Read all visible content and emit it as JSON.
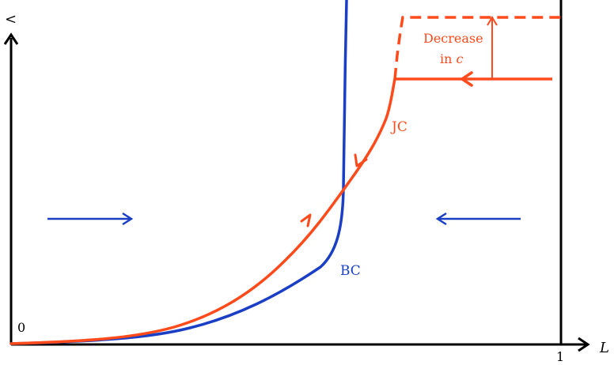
{
  "axes": {
    "y_label": "<",
    "x_label": "L",
    "origin_label": "0",
    "x_end_tick": "1"
  },
  "curves": {
    "bc_label": "BC",
    "jc_label": "JC"
  },
  "annotation": {
    "line1": "Decrease",
    "line2_prefix": "in ",
    "line2_symbol": "c"
  },
  "colors": {
    "axis": "#000000",
    "bc": "#1a3fc4",
    "jc": "#ff4a1c"
  }
}
